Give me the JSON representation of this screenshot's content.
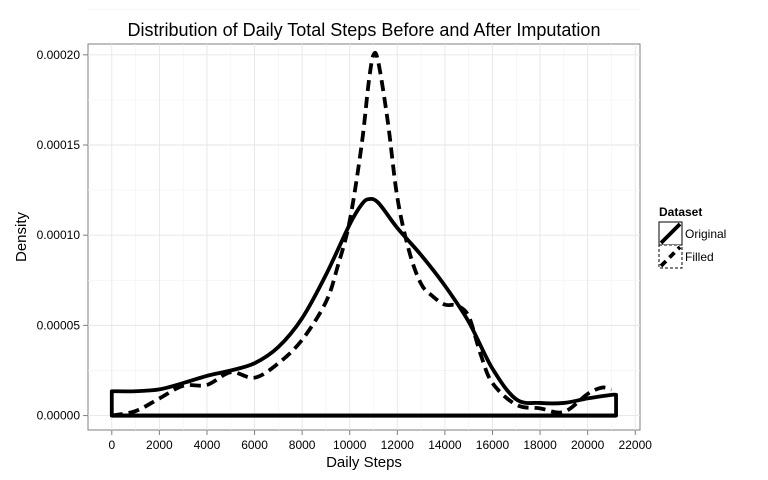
{
  "chart_data": {
    "type": "line",
    "title": "Distribution of Daily Total Steps Before and After Imputation",
    "xlabel": "Daily Steps",
    "ylabel": "Density",
    "xlim": [
      -1000,
      22200
    ],
    "ylim": [
      -8e-06,
      0.000206
    ],
    "x_ticks": [
      0,
      2000,
      4000,
      6000,
      8000,
      10000,
      12000,
      14000,
      16000,
      18000,
      20000,
      22000
    ],
    "x_tick_labels": [
      "0",
      "2000",
      "4000",
      "6000",
      "8000",
      "10000",
      "12000",
      "14000",
      "16000",
      "18000",
      "20000",
      "22000"
    ],
    "y_ticks": [
      0,
      5e-05,
      0.0001,
      0.00015,
      0.0002
    ],
    "y_tick_labels": [
      "0.00000",
      "0.00005",
      "0.00010",
      "0.00015",
      "0.00020"
    ],
    "grid": true,
    "legend": {
      "title": "Dataset",
      "position": "right"
    },
    "series": [
      {
        "name": "Original",
        "line_style": "solid",
        "x": [
          0,
          1000,
          2000,
          3000,
          4000,
          5000,
          6000,
          7000,
          8000,
          9000,
          10000,
          10500,
          10800,
          11200,
          12000,
          13000,
          14000,
          15000,
          16000,
          17000,
          18000,
          19000,
          20000,
          21000,
          21194
        ],
        "y": [
          1.35e-05,
          1.35e-05,
          1.45e-05,
          1.8e-05,
          2.2e-05,
          2.5e-05,
          2.9e-05,
          3.8e-05,
          5.4e-05,
          7.8e-05,
          0.000106,
          0.000117,
          0.00012,
          0.000118,
          0.000104,
          8.9e-05,
          7.2e-05,
          5.2e-05,
          2.6e-05,
          9e-06,
          7e-06,
          7e-06,
          9.5e-06,
          1.15e-05,
          1.15e-05
        ]
      },
      {
        "name": "Filled",
        "line_style": "dashed",
        "x": [
          0,
          1000,
          2000,
          3000,
          4000,
          5000,
          6000,
          7000,
          8000,
          9000,
          9500,
          10000,
          10500,
          10800,
          11000,
          11200,
          11600,
          12000,
          12500,
          13000,
          13500,
          14000,
          14500,
          15000,
          15500,
          16000,
          17000,
          18000,
          19000,
          20000,
          20600,
          21000
        ],
        "y": [
          0,
          2.5e-06,
          9.5e-06,
          1.65e-05,
          1.7e-05,
          2.4e-05,
          2.1e-05,
          2.9e-05,
          4.2e-05,
          6.3e-05,
          8.3e-05,
          0.000108,
          0.00015,
          0.000185,
          0.0002,
          0.000196,
          0.000163,
          0.000121,
          9.1e-05,
          7.3e-05,
          6.6e-05,
          6.15e-05,
          6.1e-05,
          5.5e-05,
          3.4e-05,
          1.8e-05,
          6e-06,
          4e-06,
          2e-06,
          1.2e-05,
          1.55e-05,
          1.45e-05
        ]
      }
    ],
    "rug": {
      "x_start": 0,
      "x_end": 21194
    }
  }
}
